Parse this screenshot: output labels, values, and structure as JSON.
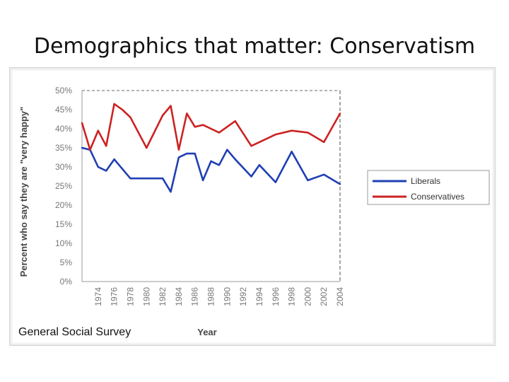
{
  "slide": {
    "title": "Demographics that matter: Conservatism",
    "source_note": "General Social Survey"
  },
  "chart_data": {
    "type": "line",
    "title": "",
    "xlabel": "Year",
    "ylabel": "Percent who say they are \"very happy\"",
    "ylim": [
      0,
      50
    ],
    "yticks": [
      0,
      5,
      10,
      15,
      20,
      25,
      30,
      35,
      40,
      45,
      50
    ],
    "ytick_labels": [
      "0%",
      "5%",
      "10%",
      "15%",
      "20%",
      "25%",
      "30%",
      "35%",
      "40%",
      "45%",
      "50%"
    ],
    "xticks": [
      "1974",
      "1976",
      "1978",
      "1980",
      "1982",
      "1984",
      "1986",
      "1988",
      "1990",
      "1992",
      "1994",
      "1996",
      "1998",
      "2000",
      "2002",
      "2004"
    ],
    "x": [
      1972,
      1973,
      1974,
      1975,
      1976,
      1977,
      1978,
      1980,
      1982,
      1983,
      1984,
      1985,
      1986,
      1987,
      1988,
      1989,
      1990,
      1991,
      1993,
      1994,
      1996,
      1998,
      2000,
      2002,
      2004
    ],
    "grid": false,
    "legend_position": "right",
    "series": [
      {
        "name": "Liberals",
        "color": "#1f3fb4",
        "values": [
          35,
          34.5,
          30,
          29,
          32,
          29.5,
          27,
          27,
          27,
          23.5,
          32.5,
          33.5,
          33.5,
          26.5,
          31.5,
          30.5,
          34.5,
          32,
          27.5,
          30.5,
          26,
          34,
          26.5,
          28,
          25.5
        ]
      },
      {
        "name": "Conservatives",
        "color": "#cc2222",
        "values": [
          41.5,
          34.5,
          39.5,
          35.5,
          46.5,
          45,
          43,
          35,
          43.5,
          46,
          34.5,
          44,
          40.5,
          41,
          40,
          39,
          40.5,
          42,
          35.5,
          36.5,
          38.5,
          39.5,
          39,
          36.5,
          44
        ]
      }
    ]
  }
}
